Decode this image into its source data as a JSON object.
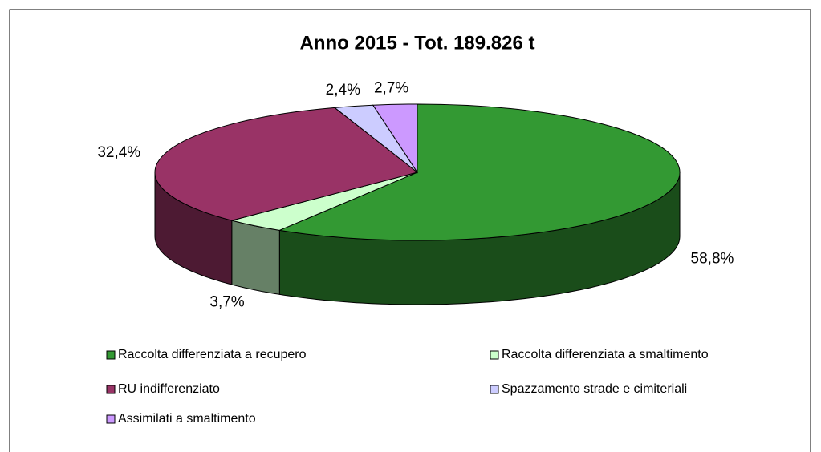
{
  "chart_data": {
    "type": "pie3d",
    "title": "Anno 2015 - Tot. 189.826 t",
    "categories": [
      "Raccolta differenziata a recupero",
      "Raccolta differenziata a smaltimento",
      "RU indifferenziato",
      "Spazzamento strade e cimiteriali",
      "Assimilati a smaltimento"
    ],
    "values": [
      58.8,
      3.7,
      32.4,
      2.4,
      2.7
    ],
    "value_labels": [
      "58,8%",
      "3,7%",
      "32,4%",
      "2,4%",
      "2,7%"
    ],
    "colors": [
      "#339933",
      "#ccffcc",
      "#993366",
      "#ccccff",
      "#cc99ff"
    ],
    "legend": "bottom"
  }
}
